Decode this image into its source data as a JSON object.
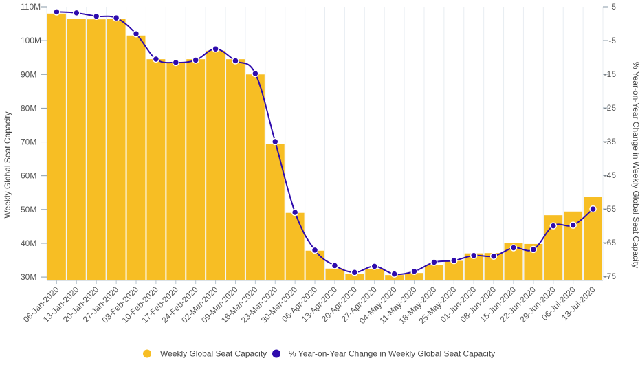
{
  "chart_data": {
    "type": "bar",
    "categories": [
      "06-Jan-2020",
      "13-Jan-2020",
      "20-Jan-2020",
      "27-Jan-2020",
      "03-Feb-2020",
      "10-Feb-2020",
      "17-Feb-2020",
      "24-Feb-2020",
      "02-Mar-2020",
      "09-Mar-2020",
      "16-Mar-2020",
      "23-Mar-2020",
      "30-Mar-2020",
      "06-Apr-2020",
      "13-Apr-2020",
      "20-Apr-2020",
      "27-Apr-2020",
      "04-May-2020",
      "11-May-2020",
      "18-May-2020",
      "25-May-2020",
      "01-Jun-2020",
      "08-Jun-2020",
      "15-Jun-2020",
      "22-Jun-2020",
      "29-Jun-2020",
      "06-Jul-2020",
      "13-Jul-2020"
    ],
    "series": [
      {
        "name": "Weekly Global Seat Capacity",
        "type": "bar",
        "axis": "left",
        "color": "#F7BE24",
        "values": [
          108.0,
          106.5,
          106.3,
          106.5,
          101.5,
          94.5,
          93.5,
          94.5,
          97.0,
          94.5,
          90.0,
          69.5,
          49.0,
          37.8,
          32.5,
          31.0,
          32.3,
          30.6,
          31.2,
          33.5,
          34.8,
          37.0,
          37.1,
          40.0,
          39.8,
          48.3,
          49.4,
          53.7
        ]
      },
      {
        "name": "% Year-on-Year Change in Weekly Global Seat Capacity",
        "type": "line",
        "axis": "right",
        "color": "#2E0BAD",
        "values": [
          3.5,
          3.2,
          2.2,
          1.7,
          -3.0,
          -10.5,
          -11.5,
          -10.8,
          -7.5,
          -11.0,
          -14.8,
          -35.0,
          -56.0,
          -67.2,
          -71.8,
          -73.8,
          -72.0,
          -74.3,
          -73.5,
          -70.8,
          -70.3,
          -68.8,
          -69.0,
          -66.5,
          -67.0,
          -60.0,
          -59.8,
          -55.0
        ]
      }
    ],
    "y_left": {
      "label": "Weekly Global Seat Capacity",
      "ylim": [
        29.0,
        110.0
      ],
      "ticks": [
        30,
        40,
        50,
        60,
        70,
        80,
        90,
        100,
        110
      ],
      "tick_labels": [
        "30M",
        "40M",
        "50M",
        "60M",
        "70M",
        "80M",
        "90M",
        "100M",
        "110M"
      ]
    },
    "y_right": {
      "label": "% Year-on-Year Change in Weekly Global Seat Capacity",
      "ylim": [
        -76.2,
        5.0
      ],
      "ticks": [
        5,
        -5,
        -15,
        -25,
        -35,
        -45,
        -55,
        -65,
        -75
      ],
      "tick_labels": [
        "5",
        "-5",
        "-15",
        "-25",
        "-35",
        "-45",
        "-55",
        "-65",
        "-75"
      ]
    },
    "grid": "vertical",
    "legend": "bottom",
    "legend_entries": [
      "Weekly Global Seat Capacity",
      "% Year-on-Year Change in Weekly Global Seat Capacity"
    ]
  }
}
